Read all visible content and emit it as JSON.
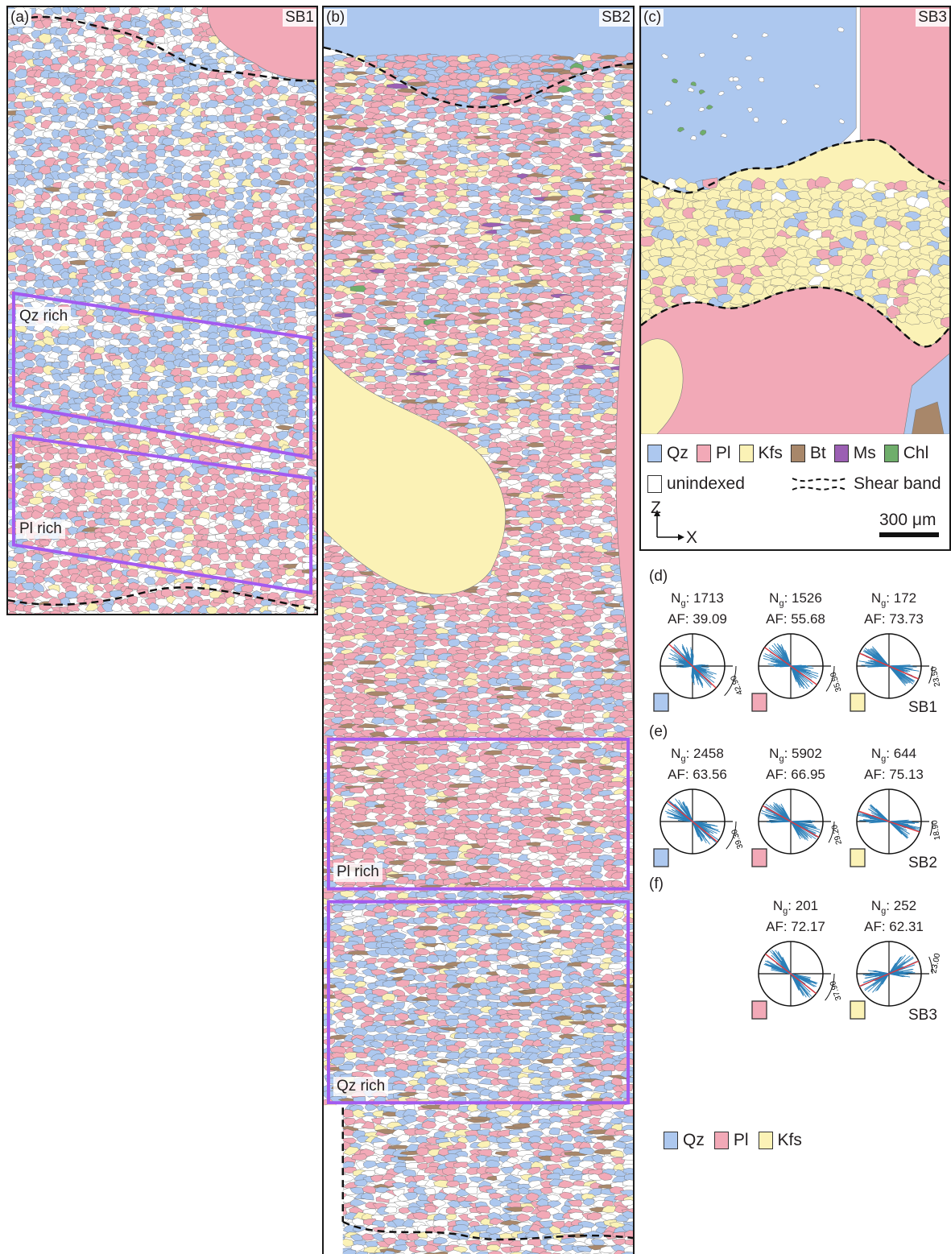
{
  "colors": {
    "qz": "#adc8ef",
    "pl": "#f2a9b7",
    "kfs": "#fbf2b6",
    "bt": "#a8876a",
    "ms": "#9b5fb3",
    "chl": "#6fae6b",
    "unindexed": "#ffffff",
    "box": "#a35bf0",
    "rose_line": "#2a7fb8",
    "mean_line": "#e0383e"
  },
  "panels": {
    "a": {
      "letter": "(a)",
      "sample": "SB1",
      "regions": [
        "Qz rich",
        "Pl rich"
      ]
    },
    "b": {
      "letter": "(b)",
      "sample": "SB2",
      "regions": [
        "Pl rich",
        "Qz rich"
      ]
    },
    "c": {
      "letter": "(c)",
      "sample": "SB3"
    }
  },
  "legend": {
    "items": [
      {
        "label": "Qz",
        "color_key": "qz"
      },
      {
        "label": "Pl",
        "color_key": "pl"
      },
      {
        "label": "Kfs",
        "color_key": "kfs"
      },
      {
        "label": "Bt",
        "color_key": "bt"
      },
      {
        "label": "Ms",
        "color_key": "ms"
      },
      {
        "label": "Chl",
        "color_key": "chl"
      }
    ],
    "unindexed": "unindexed",
    "shear_band": "Shear band",
    "scale_bar": "300 μm",
    "axis_z": "Z",
    "axis_x": "X"
  },
  "roses": {
    "d": {
      "letter": "(d)",
      "sample": "SB1",
      "plots": [
        {
          "phase": "qz",
          "ng": "1713",
          "af": "39.09",
          "angle_label": "42.90",
          "angle": 42.9
        },
        {
          "phase": "pl",
          "ng": "1526",
          "af": "55.68",
          "angle_label": "35.50",
          "angle": 35.5
        },
        {
          "phase": "kfs",
          "ng": "172",
          "af": "73.73",
          "angle_label": "23.50",
          "angle": 23.5
        }
      ]
    },
    "e": {
      "letter": "(e)",
      "sample": "SB2",
      "plots": [
        {
          "phase": "qz",
          "ng": "2458",
          "af": "63.56",
          "angle_label": "39.30",
          "angle": 39.3
        },
        {
          "phase": "pl",
          "ng": "5902",
          "af": "66.95",
          "angle_label": "29.20",
          "angle": 29.2
        },
        {
          "phase": "kfs",
          "ng": "644",
          "af": "75.13",
          "angle_label": "18.90",
          "angle": 18.9
        }
      ]
    },
    "f": {
      "letter": "(f)",
      "sample": "SB3",
      "plots": [
        {
          "phase": "pl",
          "ng": "201",
          "af": "72.17",
          "angle_label": "37.90",
          "angle": 37.9
        },
        {
          "phase": "kfs",
          "ng": "252",
          "af": "62.31",
          "angle_label": "23.00",
          "angle": -23.0
        }
      ]
    }
  },
  "roses_legend": [
    {
      "label": "Qz",
      "color_key": "qz"
    },
    {
      "label": "Pl",
      "color_key": "pl"
    },
    {
      "label": "Kfs",
      "color_key": "kfs"
    }
  ],
  "stat_ng_label": "N",
  "stat_ng_sub": "g",
  "stat_af_label": "AF: "
}
